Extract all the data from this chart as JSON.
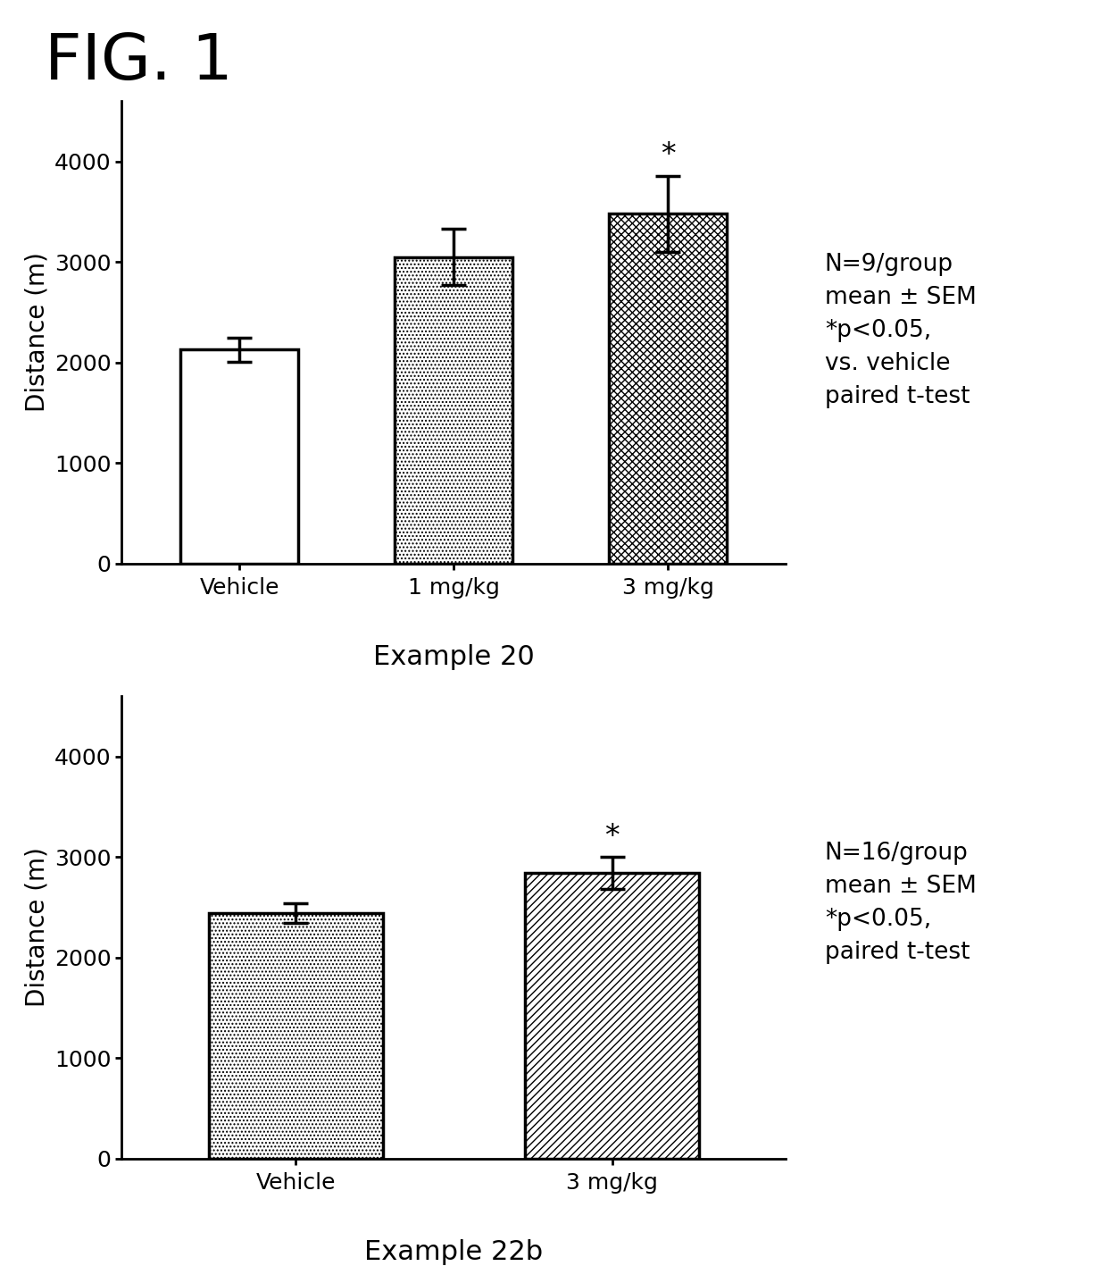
{
  "fig_label": "FIG. 1",
  "fig_label_fontsize": 52,
  "background_color": "#ffffff",
  "chart1": {
    "categories": [
      "Vehicle",
      "1 mg/kg",
      "3 mg/kg"
    ],
    "values": [
      2130,
      3050,
      3480
    ],
    "errors": [
      120,
      280,
      380
    ],
    "ylabel": "Distance (m)",
    "ylim": [
      0,
      4600
    ],
    "yticks": [
      0,
      1000,
      2000,
      3000,
      4000
    ],
    "xlabel": "Example 20",
    "annotation": "*",
    "annotation_bar_idx": 2,
    "annotation_text": "N=9/group\nmean ± SEM\n*p<0.05,\nvs. vehicle\npaired t-test",
    "hatches": [
      "#",
      ".",
      "x"
    ],
    "bar_edgecolor": "#000000"
  },
  "chart2": {
    "categories": [
      "Vehicle",
      "3 mg/kg"
    ],
    "values": [
      2440,
      2840
    ],
    "errors": [
      100,
      160
    ],
    "ylabel": "Distance (m)",
    "ylim": [
      0,
      4600
    ],
    "yticks": [
      0,
      1000,
      2000,
      3000,
      4000
    ],
    "xlabel": "Example 22b",
    "annotation": "*",
    "annotation_bar_idx": 1,
    "annotation_text": "N=16/group\nmean ± SEM\n*p<0.05,\npaired t-test",
    "hatches": [
      ".",
      "/"
    ],
    "bar_edgecolor": "#000000"
  },
  "ylabel_fontsize": 20,
  "xlabel_fontsize": 22,
  "tick_fontsize": 18,
  "annotation_fontsize": 24,
  "note_fontsize": 19,
  "bar_width": 0.55,
  "capsize": 10,
  "linewidth": 2.5
}
